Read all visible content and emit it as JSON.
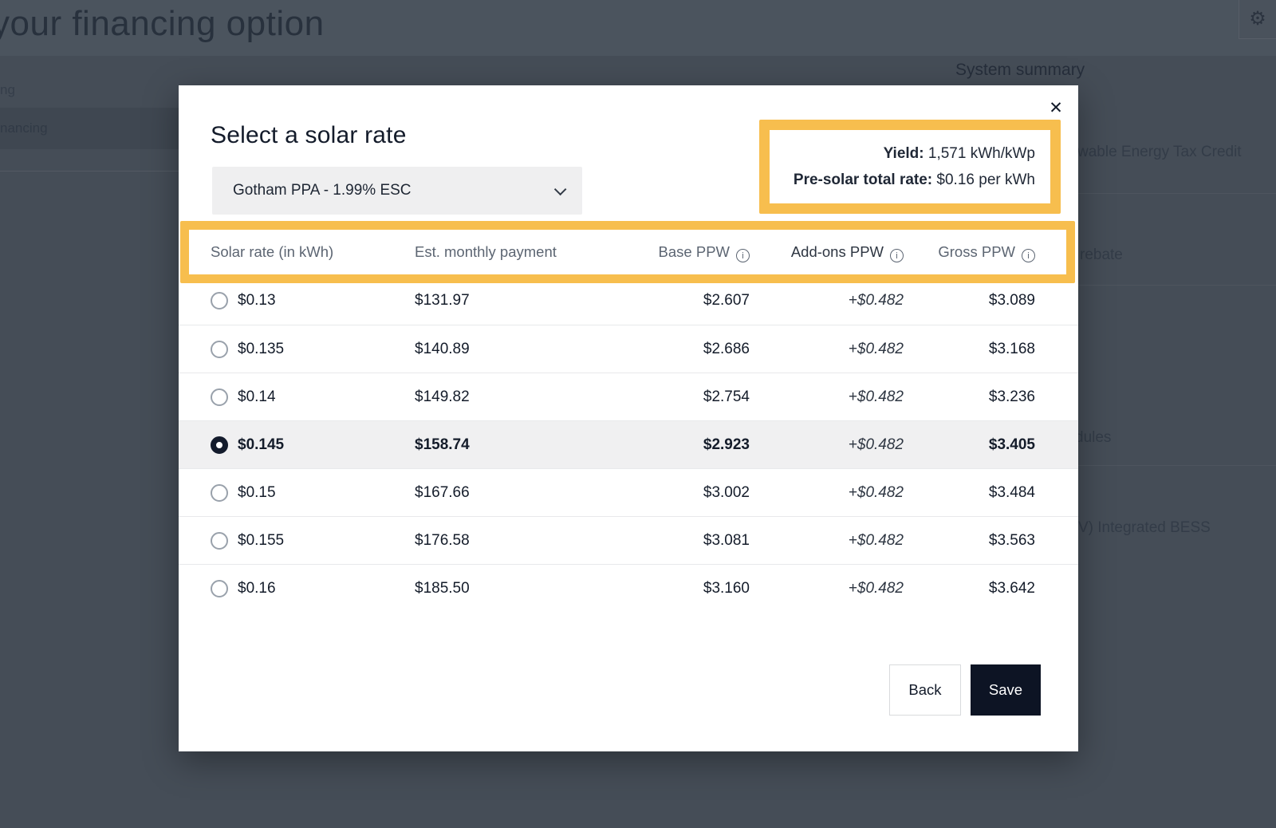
{
  "icons": {
    "gear": "⚙",
    "close": "✕",
    "info": "i"
  },
  "colors": {
    "highlight": "#F7BE4E",
    "save_button": "#0D1424",
    "overlay": "#454D57",
    "selected_row": "#F0F0F1"
  },
  "backdrop": {
    "page_title_fragment": "your financing option",
    "heading_fragment": "ng",
    "selected_tab_fragment": "nancing",
    "system_summary": {
      "title": "System summary",
      "item_fragments": [
        "wable Energy Tax Credit",
        "rebate",
        "dules",
        "V) Integrated BESS"
      ]
    }
  },
  "modal": {
    "title": "Select a solar rate",
    "dropdown": {
      "value": "Gotham PPA - 1.99% ESC"
    },
    "info_box": {
      "yield_label": "Yield:",
      "yield_value": "1,571 kWh/kWp",
      "rate_label": "Pre-solar total rate:",
      "rate_value": "$0.16 per kWh"
    },
    "table": {
      "headers": [
        "Solar rate (in kWh)",
        "Est. monthly payment",
        "Base PPW",
        "Add-ons PPW",
        "Gross PPW"
      ],
      "rows": [
        {
          "rate": "$0.13",
          "monthly": "$131.97",
          "base": "$2.607",
          "addons": "+$0.482",
          "gross": "$3.089",
          "selected": false
        },
        {
          "rate": "$0.135",
          "monthly": "$140.89",
          "base": "$2.686",
          "addons": "+$0.482",
          "gross": "$3.168",
          "selected": false
        },
        {
          "rate": "$0.14",
          "monthly": "$149.82",
          "base": "$2.754",
          "addons": "+$0.482",
          "gross": "$3.236",
          "selected": false
        },
        {
          "rate": "$0.145",
          "monthly": "$158.74",
          "base": "$2.923",
          "addons": "+$0.482",
          "gross": "$3.405",
          "selected": true
        },
        {
          "rate": "$0.15",
          "monthly": "$167.66",
          "base": "$3.002",
          "addons": "+$0.482",
          "gross": "$3.484",
          "selected": false
        },
        {
          "rate": "$0.155",
          "monthly": "$176.58",
          "base": "$3.081",
          "addons": "+$0.482",
          "gross": "$3.563",
          "selected": false
        },
        {
          "rate": "$0.16",
          "monthly": "$185.50",
          "base": "$3.160",
          "addons": "+$0.482",
          "gross": "$3.642",
          "selected": false
        }
      ]
    },
    "buttons": {
      "back": "Back",
      "save": "Save"
    }
  }
}
